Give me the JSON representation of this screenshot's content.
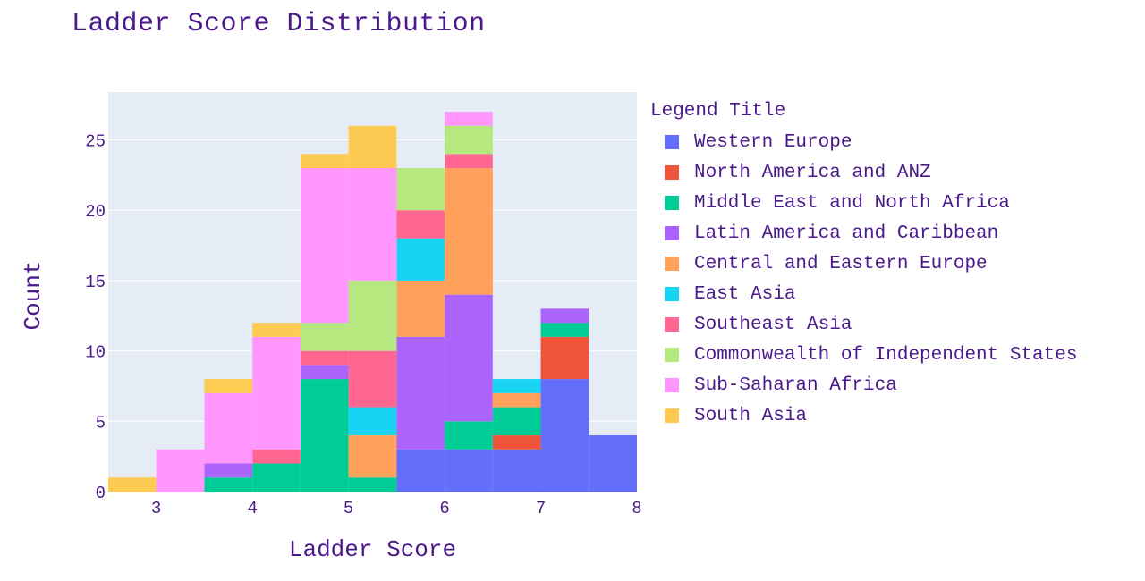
{
  "chart_data": {
    "type": "bar",
    "subtype": "stacked-histogram",
    "title": "Ladder Score Distribution",
    "xlabel": "Ladder Score",
    "ylabel": "Count",
    "legend_title": "Legend Title",
    "xlim": [
      2.5,
      8
    ],
    "ylim": [
      0,
      28.4
    ],
    "xticks": [
      3,
      4,
      5,
      6,
      7,
      8
    ],
    "yticks": [
      0,
      5,
      10,
      15,
      20,
      25
    ],
    "bins": [
      [
        2.5,
        3
      ],
      [
        3,
        3.5
      ],
      [
        3.5,
        4
      ],
      [
        4,
        4.5
      ],
      [
        4.5,
        5
      ],
      [
        5,
        5.5
      ],
      [
        5.5,
        6
      ],
      [
        6,
        6.5
      ],
      [
        6.5,
        7
      ],
      [
        7,
        7.5
      ],
      [
        7.5,
        8
      ]
    ],
    "grid": true,
    "legend_position": "right",
    "series": [
      {
        "name": "Western Europe",
        "color": "#636efa",
        "values": [
          0,
          0,
          0,
          0,
          0,
          0,
          3,
          3,
          3,
          8,
          4
        ]
      },
      {
        "name": "North America and ANZ",
        "color": "#ef553b",
        "values": [
          0,
          0,
          0,
          0,
          0,
          0,
          0,
          0,
          1,
          3,
          0
        ]
      },
      {
        "name": "Middle East and North Africa",
        "color": "#00cc96",
        "values": [
          0,
          0,
          1,
          2,
          8,
          1,
          0,
          2,
          2,
          1,
          0
        ]
      },
      {
        "name": "Latin America and Caribbean",
        "color": "#ab63fa",
        "values": [
          0,
          0,
          1,
          0,
          1,
          0,
          8,
          9,
          0,
          1,
          0
        ]
      },
      {
        "name": "Central and Eastern Europe",
        "color": "#ffa15a",
        "values": [
          0,
          0,
          0,
          0,
          0,
          3,
          4,
          9,
          1,
          0,
          0
        ]
      },
      {
        "name": "East Asia",
        "color": "#19d3f3",
        "values": [
          0,
          0,
          0,
          0,
          0,
          2,
          3,
          0,
          1,
          0,
          0
        ]
      },
      {
        "name": "Southeast Asia",
        "color": "#ff6692",
        "values": [
          0,
          0,
          0,
          1,
          1,
          4,
          2,
          1,
          0,
          0,
          0
        ]
      },
      {
        "name": "Commonwealth of Independent States",
        "color": "#b6e880",
        "values": [
          0,
          0,
          0,
          0,
          2,
          5,
          3,
          2,
          0,
          0,
          0
        ]
      },
      {
        "name": "Sub-Saharan Africa",
        "color": "#ff97ff",
        "values": [
          0,
          3,
          5,
          8,
          11,
          8,
          0,
          1,
          0,
          0,
          0
        ]
      },
      {
        "name": "South Asia",
        "color": "#fecb52",
        "values": [
          1,
          0,
          1,
          1,
          1,
          3,
          0,
          0,
          0,
          0,
          0
        ]
      }
    ]
  }
}
